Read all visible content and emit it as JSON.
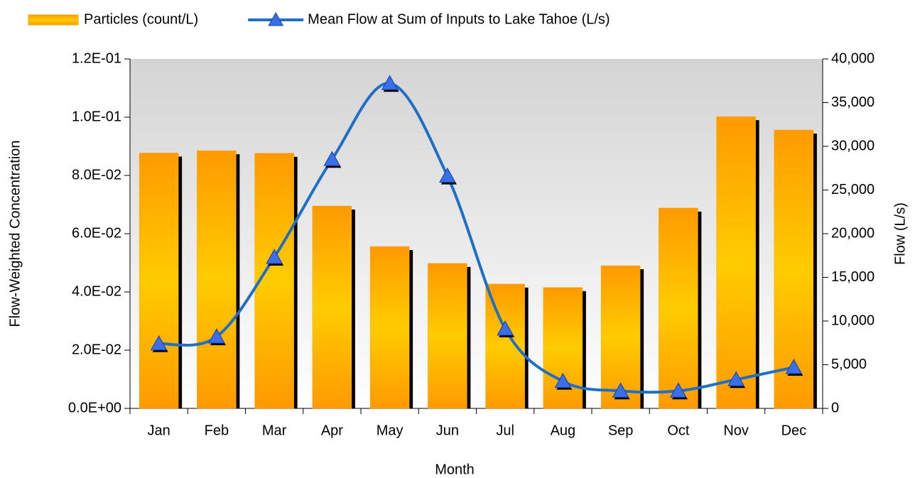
{
  "chart_data": {
    "type": "bar",
    "categories": [
      "Jan",
      "Feb",
      "Mar",
      "Apr",
      "May",
      "Jun",
      "Jul",
      "Aug",
      "Sep",
      "Oct",
      "Nov",
      "Dec"
    ],
    "series": [
      {
        "name": "Particles (count/L)",
        "type": "bar",
        "color": "#ffa200",
        "values": [
          0.0877,
          0.0885,
          0.0876,
          0.0695,
          0.0556,
          0.0498,
          0.0427,
          0.0415,
          0.049,
          0.0688,
          0.1002,
          0.0956
        ]
      },
      {
        "name": "Mean Flow at Sum of Inputs to Lake Tahoe (L/s)",
        "type": "line",
        "axis": "y2",
        "color": "#1f6fc4",
        "values": [
          7400,
          8200,
          17300,
          28500,
          37200,
          26600,
          9100,
          3100,
          2000,
          2000,
          3300,
          4700
        ]
      }
    ],
    "xlabel": "Month",
    "ylabel": "Flow-Weighted Concentration",
    "y2label": "Flow (L/s)",
    "ylim": [
      0,
      0.12
    ],
    "yticks": [
      {
        "value": 0,
        "label": "0.0E+00"
      },
      {
        "value": 0.02,
        "label": "2.0E-02"
      },
      {
        "value": 0.04,
        "label": "4.0E-02"
      },
      {
        "value": 0.06,
        "label": "6.0E-02"
      },
      {
        "value": 0.08,
        "label": "8.0E-02"
      },
      {
        "value": 0.1,
        "label": "1.0E-01"
      },
      {
        "value": 0.12,
        "label": "1.2E-01"
      }
    ],
    "y2lim": [
      0,
      40000
    ],
    "y2ticks": [
      0,
      {
        "value": 5000,
        "label": "5,000"
      },
      {
        "value": 10000,
        "label": "10,000"
      },
      {
        "value": 15000,
        "label": "15,000"
      },
      {
        "value": 20000,
        "label": "20,000"
      },
      {
        "value": 25000,
        "label": "25,000"
      },
      {
        "value": 30000,
        "label": "30,000"
      },
      {
        "value": 35000,
        "label": "35,000"
      },
      {
        "value": 40000,
        "label": "40,000"
      }
    ],
    "legend": "top"
  }
}
